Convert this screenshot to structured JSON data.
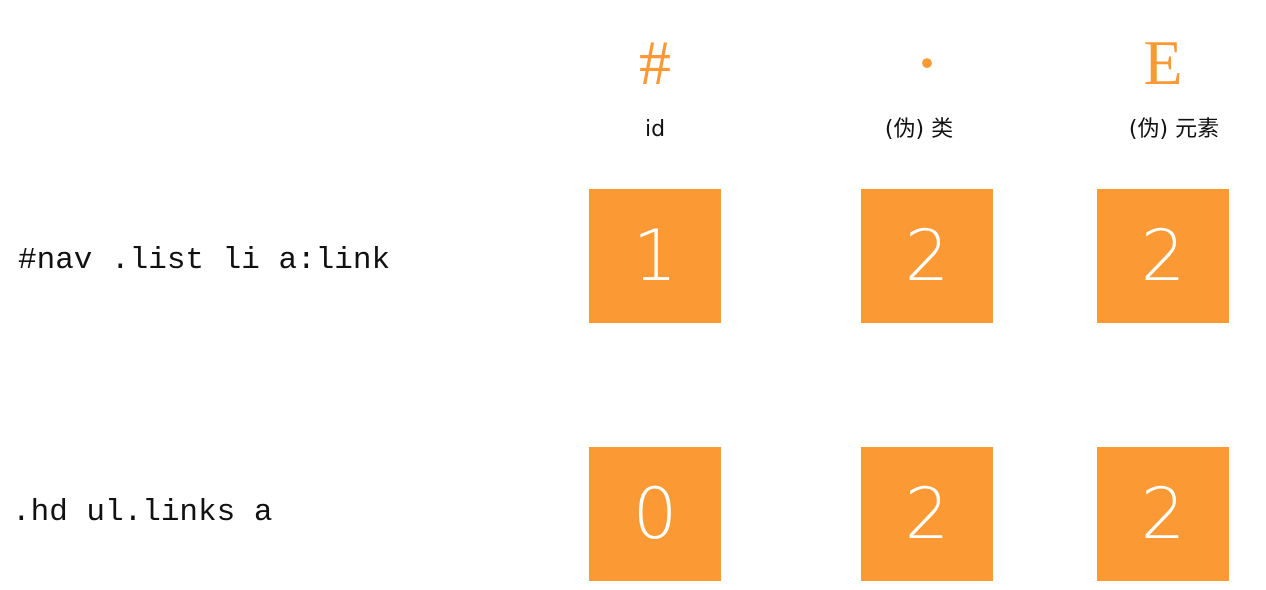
{
  "columns": [
    {
      "symbol": "#",
      "label": "id"
    },
    {
      "symbol": "·",
      "label": "(伪) 类"
    },
    {
      "symbol": "E",
      "label": "(伪) 元素"
    }
  ],
  "rows": [
    {
      "selector": "#nav .list li a:link",
      "values": [
        "1",
        "2",
        "2"
      ]
    },
    {
      "selector": ".hd ul.links a",
      "values": [
        "0",
        "2",
        "2"
      ]
    }
  ],
  "colors": {
    "accent": "#fb9a35",
    "cell_text": "#ffffff",
    "text": "#111111"
  }
}
